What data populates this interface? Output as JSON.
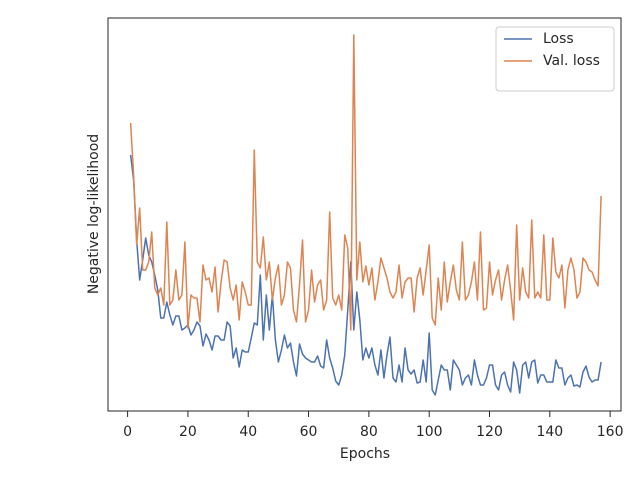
{
  "chart_data": {
    "type": "line",
    "xlabel": "Epochs",
    "ylabel": "Negative log-likelihood",
    "x": [
      1,
      2,
      3,
      4,
      5,
      6,
      7,
      8,
      9,
      10,
      11,
      12,
      13,
      14,
      15,
      16,
      17,
      18,
      19,
      20,
      21,
      22,
      23,
      24,
      25,
      26,
      27,
      28,
      29,
      30,
      31,
      32,
      33,
      34,
      35,
      36,
      37,
      38,
      39,
      40,
      41,
      42,
      43,
      44,
      45,
      46,
      47,
      48,
      49,
      50,
      51,
      52,
      53,
      54,
      55,
      56,
      57,
      58,
      59,
      60,
      61,
      62,
      63,
      64,
      65,
      66,
      67,
      68,
      69,
      70,
      71,
      72,
      73,
      74,
      75,
      76,
      77,
      78,
      79,
      80,
      81,
      82,
      83,
      84,
      85,
      86,
      87,
      88,
      89,
      90,
      91,
      92,
      93,
      94,
      95,
      96,
      97,
      98,
      99,
      100,
      101,
      102,
      103,
      104,
      105,
      106,
      107,
      108,
      109,
      110,
      111,
      112,
      113,
      114,
      115,
      116,
      117,
      118,
      119,
      120,
      121,
      122,
      123,
      124,
      125,
      126,
      127,
      128,
      129,
      130,
      131,
      132,
      133,
      134,
      135,
      136,
      137,
      138,
      139,
      140,
      141,
      142,
      143,
      144,
      145,
      146,
      147,
      148,
      149,
      150,
      151,
      152,
      153,
      154,
      155,
      156,
      157
    ],
    "series": [
      {
        "name": "Loss",
        "color": "#4c72b0",
        "values": [
          256,
          231,
          171,
          131,
          151,
          173,
          156,
          149,
          136,
          121,
          93,
          93,
          109,
          96,
          86,
          95,
          95,
          81,
          83,
          86,
          76,
          81,
          89,
          85,
          65,
          77,
          71,
          61,
          75,
          75,
          71,
          71,
          89,
          85,
          53,
          63,
          44,
          61,
          59,
          59,
          73,
          88,
          86,
          136,
          71,
          116,
          81,
          116,
          71,
          49,
          61,
          76,
          63,
          68,
          49,
          35,
          67,
          57,
          53,
          51,
          49,
          49,
          55,
          45,
          43,
          71,
          53,
          43,
          30,
          26,
          36,
          56,
          101,
          149,
          81,
          119,
          91,
          51,
          63,
          53,
          63,
          46,
          36,
          61,
          33,
          56,
          74,
          33,
          29,
          46,
          29,
          63,
          41,
          37,
          41,
          28,
          29,
          51,
          29,
          78,
          21,
          16,
          31,
          46,
          41,
          41,
          21,
          51,
          46,
          41,
          26,
          33,
          36,
          26,
          51,
          36,
          26,
          26,
          33,
          46,
          46,
          26,
          21,
          36,
          39,
          26,
          19,
          49,
          41,
          18,
          46,
          49,
          33,
          49,
          51,
          28,
          36,
          36,
          29,
          29,
          29,
          51,
          43,
          43,
          26,
          33,
          36,
          25,
          26,
          24,
          39,
          45,
          34,
          29,
          31,
          31,
          49
        ]
      },
      {
        "name": "Val. loss",
        "color": "#dd8452",
        "values": [
          288,
          236,
          166,
          203,
          141,
          141,
          149,
          179,
          123,
          116,
          123,
          106,
          189,
          106,
          111,
          141,
          111,
          116,
          169,
          83,
          116,
          113,
          113,
          89,
          146,
          131,
          133,
          119,
          144,
          99,
          129,
          151,
          149,
          123,
          111,
          126,
          91,
          129,
          119,
          106,
          106,
          261,
          149,
          143,
          174,
          131,
          149,
          111,
          133,
          146,
          106,
          116,
          149,
          143,
          101,
          89,
          126,
          171,
          89,
          101,
          141,
          109,
          126,
          131,
          101,
          111,
          199,
          113,
          106,
          116,
          101,
          176,
          163,
          81,
          376,
          131,
          169,
          129,
          145,
          126,
          143,
          111,
          129,
          153,
          143,
          133,
          119,
          113,
          119,
          146,
          113,
          129,
          133,
          133,
          99,
          133,
          143,
          116,
          141,
          166,
          93,
          86,
          133,
          101,
          149,
          109,
          129,
          146,
          121,
          111,
          169,
          111,
          116,
          129,
          149,
          111,
          179,
          101,
          103,
          149,
          116,
          131,
          141,
          111,
          131,
          146,
          121,
          91,
          186,
          111,
          143,
          119,
          113,
          191,
          113,
          119,
          113,
          176,
          111,
          111,
          173,
          139,
          133,
          146,
          103,
          141,
          153,
          141,
          113,
          119,
          153,
          149,
          141,
          139,
          131,
          125,
          215
        ]
      }
    ],
    "xlim": [
      -6.5,
      163.6
    ],
    "xticks": [
      0,
      20,
      40,
      60,
      80,
      100,
      120,
      140,
      160
    ],
    "ylim": [
      0,
      393
    ],
    "legend": "upper right"
  }
}
